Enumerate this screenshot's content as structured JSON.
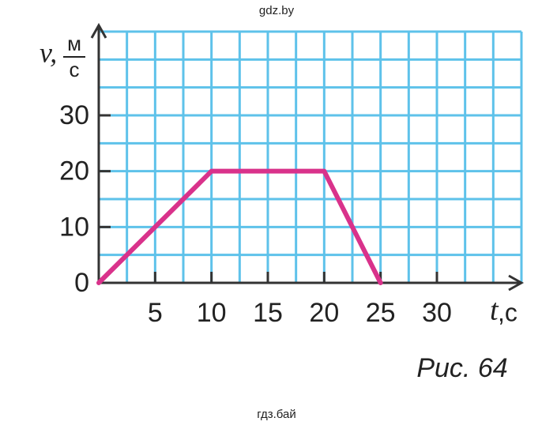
{
  "watermark_top": "gdz.by",
  "watermark_bottom": "гдз.бай",
  "chart_data": {
    "type": "line",
    "caption": "Рис. 64",
    "x_label": "t",
    "x_unit": ",с",
    "y_label": "v,",
    "y_unit_top": "м",
    "y_unit_bottom": "с",
    "x": [
      0,
      10,
      20,
      25
    ],
    "series": [
      {
        "color": "#d9328b",
        "values": [
          0,
          20,
          20,
          0
        ]
      }
    ],
    "xlim": [
      0,
      37.5
    ],
    "ylim": [
      0,
      45
    ],
    "xticks": [
      5,
      10,
      15,
      20,
      25,
      30
    ],
    "yticks": [
      0,
      10,
      20,
      30
    ],
    "x_grid": [
      0,
      2.5,
      5,
      7.5,
      10,
      12.5,
      15,
      17.5,
      20,
      22.5,
      25,
      27.5,
      30,
      32.5,
      35,
      37.5
    ],
    "y_grid": [
      0,
      5,
      10,
      15,
      20,
      25,
      30,
      35,
      40,
      45
    ],
    "grid_color": "#5ec2ea"
  }
}
